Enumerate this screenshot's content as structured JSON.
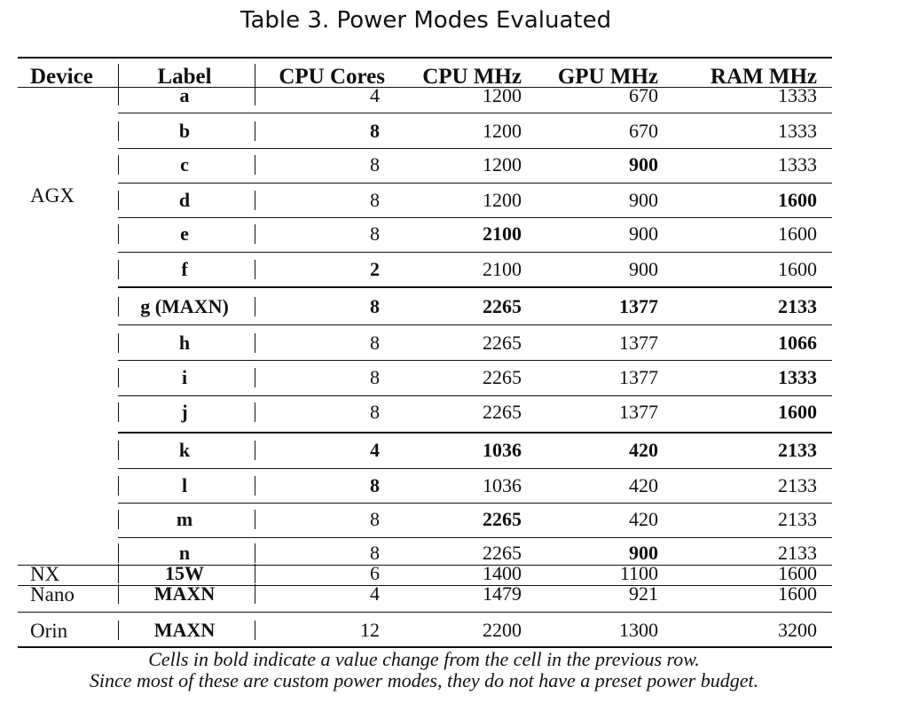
{
  "caption": "Table 3.  Power Modes Evaluated",
  "headers": [
    "Device",
    "Label",
    "CPU Cores",
    "CPU MHz",
    "GPU MHz",
    "RAM MHz"
  ],
  "groups": [
    {
      "device": "AGX",
      "rows": [
        {
          "label": "a",
          "cores": "4",
          "cpu": "1200",
          "gpu": "670",
          "ram": "1333",
          "bold": []
        },
        {
          "label": "b",
          "cores": "8",
          "cpu": "1200",
          "gpu": "670",
          "ram": "1333",
          "bold": [
            "cores"
          ]
        },
        {
          "label": "c",
          "cores": "8",
          "cpu": "1200",
          "gpu": "900",
          "ram": "1333",
          "bold": [
            "gpu"
          ]
        },
        {
          "label": "d",
          "cores": "8",
          "cpu": "1200",
          "gpu": "900",
          "ram": "1600",
          "bold": [
            "ram"
          ]
        },
        {
          "label": "e",
          "cores": "8",
          "cpu": "2100",
          "gpu": "900",
          "ram": "1600",
          "bold": [
            "cpu"
          ]
        },
        {
          "label": "f",
          "cores": "2",
          "cpu": "2100",
          "gpu": "900",
          "ram": "1600",
          "bold": [
            "cores"
          ]
        },
        {
          "label": "g (MAXN)",
          "cores": "8",
          "cpu": "2265",
          "gpu": "1377",
          "ram": "2133",
          "bold": [
            "cores",
            "cpu",
            "gpu",
            "ram"
          ]
        },
        {
          "label": "h",
          "cores": "8",
          "cpu": "2265",
          "gpu": "1377",
          "ram": "1066",
          "bold": [
            "ram"
          ]
        },
        {
          "label": "i",
          "cores": "8",
          "cpu": "2265",
          "gpu": "1377",
          "ram": "1333",
          "bold": [
            "ram"
          ]
        },
        {
          "label": "j",
          "cores": "8",
          "cpu": "2265",
          "gpu": "1377",
          "ram": "1600",
          "bold": [
            "ram"
          ]
        },
        {
          "label": "k",
          "cores": "4",
          "cpu": "1036",
          "gpu": "420",
          "ram": "2133",
          "bold": [
            "cores",
            "cpu",
            "gpu",
            "ram"
          ]
        },
        {
          "label": "l",
          "cores": "8",
          "cpu": "1036",
          "gpu": "420",
          "ram": "2133",
          "bold": [
            "cores"
          ]
        },
        {
          "label": "m",
          "cores": "8",
          "cpu": "2265",
          "gpu": "420",
          "ram": "2133",
          "bold": [
            "cpu"
          ]
        },
        {
          "label": "n",
          "cores": "8",
          "cpu": "2265",
          "gpu": "900",
          "ram": "2133",
          "bold": [
            "gpu"
          ]
        }
      ]
    },
    {
      "device": "NX",
      "rows": [
        {
          "label": "15W",
          "cores": "6",
          "cpu": "1400",
          "gpu": "1100",
          "ram": "1600",
          "bold": []
        }
      ]
    },
    {
      "device": "Nano",
      "rows": [
        {
          "label": "MAXN",
          "cores": "4",
          "cpu": "1479",
          "gpu": "921",
          "ram": "1600",
          "bold": []
        }
      ]
    },
    {
      "device": "Orin",
      "rows": [
        {
          "label": "MAXN",
          "cores": "12",
          "cpu": "2200",
          "gpu": "1300",
          "ram": "3200",
          "bold": []
        }
      ]
    }
  ],
  "notes": [
    "Cells in bold indicate a value change from the cell in the previous row.",
    "Since most of these are custom power modes, they do not have a preset power budget."
  ]
}
